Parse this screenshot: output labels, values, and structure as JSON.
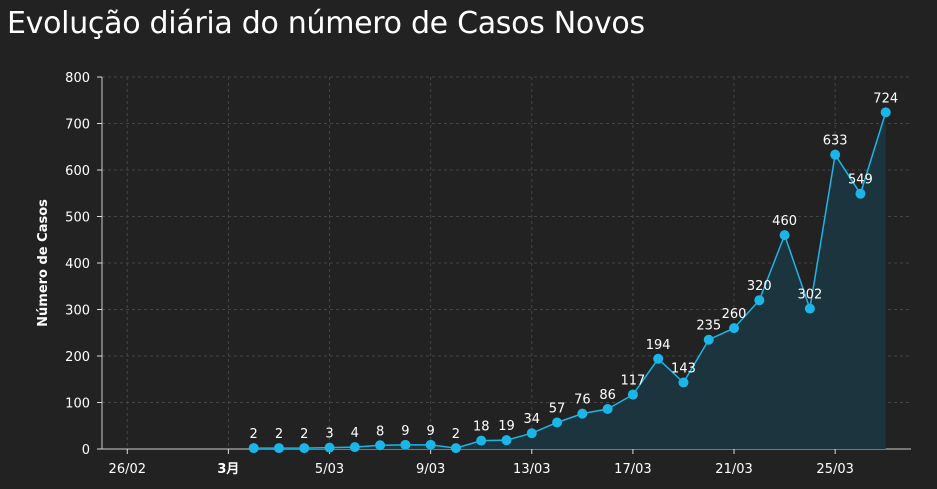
{
  "title": "Evolução diária do número de Casos Novos",
  "colors": {
    "background": "#222222",
    "series": "#1ab6e8",
    "area": "#1b343d",
    "grid": "#444444"
  },
  "chart_data": {
    "type": "line",
    "title": "Evolução diária do número de Casos Novos",
    "ylabel": "Número de Casos",
    "xlabel": "",
    "ylim": [
      0,
      800
    ],
    "yticks": [
      0,
      100,
      200,
      300,
      400,
      500,
      600,
      700,
      800
    ],
    "xlim": [
      "2020-02-25",
      "2020-03-28"
    ],
    "xticks": [
      {
        "date": "2020-02-26",
        "label": "26/02"
      },
      {
        "date": "2020-03-01",
        "label": "3月"
      },
      {
        "date": "2020-03-05",
        "label": "5/03"
      },
      {
        "date": "2020-03-09",
        "label": "9/03"
      },
      {
        "date": "2020-03-13",
        "label": "13/03"
      },
      {
        "date": "2020-03-17",
        "label": "17/03"
      },
      {
        "date": "2020-03-21",
        "label": "21/03"
      },
      {
        "date": "2020-03-25",
        "label": "25/03"
      }
    ],
    "grid": true,
    "series": [
      {
        "x": [
          "2020-03-02",
          "2020-03-03",
          "2020-03-04",
          "2020-03-05",
          "2020-03-06",
          "2020-03-07",
          "2020-03-08",
          "2020-03-09",
          "2020-03-10",
          "2020-03-11",
          "2020-03-12",
          "2020-03-13",
          "2020-03-14",
          "2020-03-15",
          "2020-03-16",
          "2020-03-17",
          "2020-03-18",
          "2020-03-19",
          "2020-03-20",
          "2020-03-21",
          "2020-03-22",
          "2020-03-23",
          "2020-03-24",
          "2020-03-25",
          "2020-03-26",
          "2020-03-27"
        ],
        "values": [
          2,
          2,
          2,
          3,
          4,
          8,
          9,
          9,
          2,
          18,
          19,
          34,
          57,
          76,
          86,
          117,
          194,
          143,
          235,
          260,
          320,
          460,
          302,
          633,
          549,
          724
        ]
      }
    ]
  }
}
